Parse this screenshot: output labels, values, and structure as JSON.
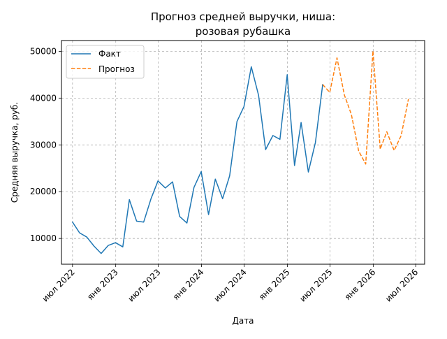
{
  "chart_data": {
    "type": "line",
    "title_lines": [
      "Прогноз средней выручки, ниша:",
      "розовая рубашка"
    ],
    "xlabel": "Дата",
    "ylabel": "Средняя выручка, руб.",
    "xlim": [
      "2022-05-15",
      "2026-08-08"
    ],
    "ylim": [
      4500,
      52300
    ],
    "grid": true,
    "legend_position": "top-left",
    "x_ticks": [
      {
        "date": "2022-07-01",
        "label": "июл 2022"
      },
      {
        "date": "2023-01-01",
        "label": "янв 2023"
      },
      {
        "date": "2023-07-01",
        "label": "июл 2023"
      },
      {
        "date": "2024-01-01",
        "label": "янв 2024"
      },
      {
        "date": "2024-07-01",
        "label": "июл 2024"
      },
      {
        "date": "2025-01-01",
        "label": "янв 2025"
      },
      {
        "date": "2025-07-01",
        "label": "июл 2025"
      },
      {
        "date": "2026-01-01",
        "label": "янв 2026"
      },
      {
        "date": "2026-07-01",
        "label": "июл 2026"
      }
    ],
    "y_ticks": [
      {
        "value": 10000,
        "label": "10000"
      },
      {
        "value": 20000,
        "label": "20000"
      },
      {
        "value": 30000,
        "label": "30000"
      },
      {
        "value": 40000,
        "label": "40000"
      },
      {
        "value": 50000,
        "label": "50000"
      }
    ],
    "series": [
      {
        "name": "Факт",
        "color": "#1f77b4",
        "style": "solid",
        "points": [
          [
            "2022-07-01",
            13500
          ],
          [
            "2022-07-31",
            11200
          ],
          [
            "2022-08-31",
            10300
          ],
          [
            "2022-09-30",
            8400
          ],
          [
            "2022-10-31",
            6800
          ],
          [
            "2022-11-30",
            8500
          ],
          [
            "2022-12-31",
            9100
          ],
          [
            "2023-01-31",
            8200
          ],
          [
            "2023-02-28",
            18300
          ],
          [
            "2023-03-31",
            13700
          ],
          [
            "2023-04-30",
            13500
          ],
          [
            "2023-05-31",
            18500
          ],
          [
            "2023-06-30",
            22300
          ],
          [
            "2023-07-31",
            20800
          ],
          [
            "2023-08-31",
            22100
          ],
          [
            "2023-09-30",
            14700
          ],
          [
            "2023-10-31",
            13300
          ],
          [
            "2023-11-30",
            20900
          ],
          [
            "2023-12-31",
            24300
          ],
          [
            "2024-01-31",
            15100
          ],
          [
            "2024-02-29",
            22700
          ],
          [
            "2024-03-31",
            18500
          ],
          [
            "2024-04-30",
            23400
          ],
          [
            "2024-05-31",
            35000
          ],
          [
            "2024-06-30",
            38200
          ],
          [
            "2024-07-31",
            46700
          ],
          [
            "2024-08-31",
            40600
          ],
          [
            "2024-09-30",
            29000
          ],
          [
            "2024-10-31",
            32000
          ],
          [
            "2024-11-30",
            31200
          ],
          [
            "2024-12-31",
            45000
          ],
          [
            "2025-01-31",
            25600
          ],
          [
            "2025-02-28",
            34800
          ],
          [
            "2025-03-31",
            24200
          ],
          [
            "2025-04-30",
            30500
          ],
          [
            "2025-05-31",
            42900
          ]
        ]
      },
      {
        "name": "Прогноз",
        "color": "#ff7f0e",
        "style": "dashed",
        "points": [
          [
            "2025-05-31",
            42900
          ],
          [
            "2025-06-30",
            41200
          ],
          [
            "2025-07-31",
            48600
          ],
          [
            "2025-08-31",
            40700
          ],
          [
            "2025-09-30",
            36500
          ],
          [
            "2025-10-31",
            28700
          ],
          [
            "2025-11-30",
            25900
          ],
          [
            "2025-12-31",
            50100
          ],
          [
            "2026-01-31",
            29100
          ],
          [
            "2026-02-28",
            32800
          ],
          [
            "2026-03-31",
            28800
          ],
          [
            "2026-04-30",
            32000
          ],
          [
            "2026-05-31",
            39800
          ]
        ]
      }
    ]
  }
}
